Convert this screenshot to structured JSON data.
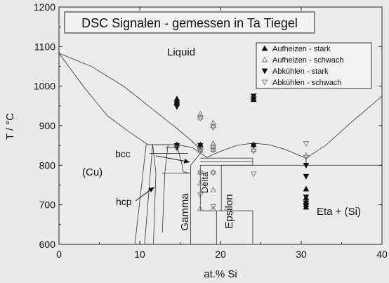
{
  "chart_data": {
    "type": "scatter",
    "title": "DSC Signalen - gemessen in Ta Tiegel",
    "xlabel": "at.% Si",
    "ylabel": "T / °C",
    "xlim": [
      0,
      40
    ],
    "ylim": [
      600,
      1200
    ],
    "xticks": [
      "0",
      "10",
      "20",
      "30",
      "40"
    ],
    "yticks": [
      "600",
      "700",
      "800",
      "900",
      "1000",
      "1100",
      "1200"
    ],
    "grid": false,
    "legend_position": "top-right",
    "region_labels": {
      "liquid": "Liquid",
      "cu": "(Cu)",
      "bcc": "bcc",
      "hcp": "hcp",
      "gamma": "Gamma",
      "delta": "Delta",
      "epsilon": "Epsilon",
      "eta_si": "Eta + (Si)"
    },
    "series": [
      {
        "name": "Aufheizen - stark",
        "marker": "triangle-up-filled",
        "points": [
          [
            14.6,
            958
          ],
          [
            14.6,
            962
          ],
          [
            14.6,
            968
          ],
          [
            14.6,
            852
          ],
          [
            17.5,
            852
          ],
          [
            24.1,
            966
          ],
          [
            24.1,
            972
          ],
          [
            24.1,
            852
          ],
          [
            30.6,
            740
          ],
          [
            30.6,
            718
          ],
          [
            30.6,
            708
          ],
          [
            30.6,
            700
          ],
          [
            30.6,
            694
          ]
        ]
      },
      {
        "name": "Aufheizen - schwach",
        "marker": "triangle-up-open",
        "points": [
          [
            17.5,
            930
          ],
          [
            17.5,
            922
          ],
          [
            17.5,
            848
          ],
          [
            17.5,
            838
          ],
          [
            17.5,
            783
          ],
          [
            17.5,
            755
          ],
          [
            17.5,
            690
          ],
          [
            19.1,
            908
          ],
          [
            19.1,
            900
          ],
          [
            19.1,
            855
          ],
          [
            19.1,
            848
          ],
          [
            19.1,
            840
          ],
          [
            19.1,
            783
          ],
          [
            19.1,
            738
          ],
          [
            19.1,
            690
          ],
          [
            24.1,
            840
          ],
          [
            30.6,
            825
          ]
        ]
      },
      {
        "name": "Abkühlen - stark",
        "marker": "triangle-down-filled",
        "points": [
          [
            14.6,
            955
          ],
          [
            14.6,
            948
          ],
          [
            14.6,
            850
          ],
          [
            14.6,
            843
          ],
          [
            17.5,
            850
          ],
          [
            24.1,
            975
          ],
          [
            24.1,
            968
          ],
          [
            24.1,
            850
          ],
          [
            30.6,
            800
          ],
          [
            30.6,
            772
          ],
          [
            30.6,
            720
          ],
          [
            30.6,
            705
          ],
          [
            30.6,
            697
          ]
        ]
      },
      {
        "name": "Abkühlen - schwach",
        "marker": "triangle-down-open",
        "points": [
          [
            14.6,
            843
          ],
          [
            17.5,
            918
          ],
          [
            17.5,
            840
          ],
          [
            17.5,
            835
          ],
          [
            17.5,
            780
          ],
          [
            17.5,
            725
          ],
          [
            19.1,
            895
          ],
          [
            19.1,
            845
          ],
          [
            19.1,
            838
          ],
          [
            19.1,
            780
          ],
          [
            19.1,
            695
          ],
          [
            24.1,
            835
          ],
          [
            24.1,
            778
          ],
          [
            30.6,
            855
          ],
          [
            30.6,
            820
          ]
        ]
      }
    ],
    "phase_lines": [
      [
        [
          0,
          1083
        ],
        [
          4,
          1050
        ],
        [
          8,
          1000
        ],
        [
          12,
          935
        ],
        [
          14.5,
          895
        ],
        [
          16.5,
          860
        ],
        [
          17.8,
          835
        ]
      ],
      [
        [
          0,
          1083
        ],
        [
          3,
          1000
        ],
        [
          6,
          925
        ],
        [
          9,
          880
        ],
        [
          11,
          852
        ]
      ],
      [
        [
          11,
          852
        ],
        [
          14.6,
          852
        ]
      ],
      [
        [
          14.6,
          852
        ],
        [
          16.5,
          845
        ],
        [
          18.3,
          820
        ]
      ],
      [
        [
          18.3,
          820
        ],
        [
          20,
          835
        ],
        [
          22,
          850
        ],
        [
          24,
          856
        ],
        [
          26,
          852
        ],
        [
          28,
          840
        ],
        [
          30,
          823
        ],
        [
          30.6,
          818
        ]
      ],
      [
        [
          30.6,
          818
        ],
        [
          33,
          850
        ],
        [
          36,
          905
        ],
        [
          40,
          975
        ]
      ],
      [
        [
          24,
          800
        ],
        [
          40,
          800
        ]
      ],
      [
        [
          24,
          685
        ],
        [
          24,
          600
        ]
      ],
      [
        [
          10.8,
          853
        ],
        [
          9.4,
          600
        ]
      ],
      [
        [
          11.6,
          853
        ],
        [
          10.6,
          600
        ]
      ],
      [
        [
          11.6,
          853
        ],
        [
          12,
          780
        ],
        [
          11.7,
          600
        ]
      ],
      [
        [
          13.5,
          852
        ],
        [
          13.1,
          780
        ],
        [
          12.8,
          630
        ]
      ],
      [
        [
          12.8,
          780
        ],
        [
          16.2,
          780
        ]
      ],
      [
        [
          13.2,
          845
        ],
        [
          14.6,
          845
        ]
      ],
      [
        [
          14.6,
          852
        ],
        [
          15.2,
          805
        ],
        [
          15.4,
          783
        ]
      ],
      [
        [
          15.4,
          783
        ],
        [
          16.2,
          780
        ]
      ],
      [
        [
          11.2,
          830
        ],
        [
          16,
          830
        ]
      ],
      [
        [
          16.3,
          600
        ],
        [
          16.3,
          800
        ],
        [
          17.7,
          835
        ]
      ],
      [
        [
          17.5,
          810
        ],
        [
          24,
          810
        ]
      ],
      [
        [
          17.5,
          818
        ],
        [
          24,
          818
        ]
      ],
      [
        [
          17.5,
          800
        ],
        [
          24,
          800
        ]
      ],
      [
        [
          17.5,
          800
        ],
        [
          17.5,
          685
        ],
        [
          20.1,
          685
        ],
        [
          20.1,
          800
        ]
      ],
      [
        [
          20.1,
          800
        ],
        [
          24,
          800
        ]
      ],
      [
        [
          20.1,
          685
        ],
        [
          24,
          685
        ]
      ],
      [
        [
          19.5,
          600
        ],
        [
          19.5,
          685
        ]
      ],
      [
        [
          24,
          818
        ],
        [
          24,
          800
        ]
      ],
      [
        [
          30.6,
          818
        ],
        [
          30.6,
          800
        ]
      ]
    ],
    "annotations": [
      {
        "label": "bcc",
        "from": [
          12.0,
          824
        ],
        "to": [
          16.2,
          808
        ]
      },
      {
        "label": "hcp",
        "from": [
          9.5,
          710
        ],
        "to": [
          11.8,
          745
        ]
      }
    ]
  }
}
